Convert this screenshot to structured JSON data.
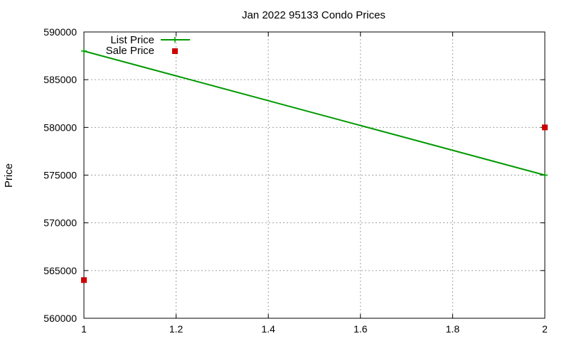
{
  "chart_data": {
    "type": "line",
    "title": "Jan 2022 95133 Condo Prices",
    "xlabel": "",
    "ylabel": "Price",
    "xlim": [
      1,
      2
    ],
    "ylim": [
      560000,
      590000
    ],
    "x_ticks": [
      1,
      1.2,
      1.4,
      1.6,
      1.8,
      2
    ],
    "x_tick_labels": [
      "1",
      "1.2",
      "1.4",
      "1.6",
      "1.8",
      "2"
    ],
    "y_ticks": [
      560000,
      565000,
      570000,
      575000,
      580000,
      585000,
      590000
    ],
    "y_tick_labels": [
      "560000",
      "565000",
      "570000",
      "575000",
      "580000",
      "585000",
      "590000"
    ],
    "grid": true,
    "legend_position": "top-left",
    "series": [
      {
        "name": "List Price",
        "style": "linespoints",
        "color": "#009900",
        "x": [
          1,
          2
        ],
        "y": [
          588000,
          575000
        ]
      },
      {
        "name": "Sale Price",
        "style": "points",
        "color": "#cc0000",
        "x": [
          1,
          2
        ],
        "y": [
          564000,
          580000
        ]
      }
    ]
  }
}
